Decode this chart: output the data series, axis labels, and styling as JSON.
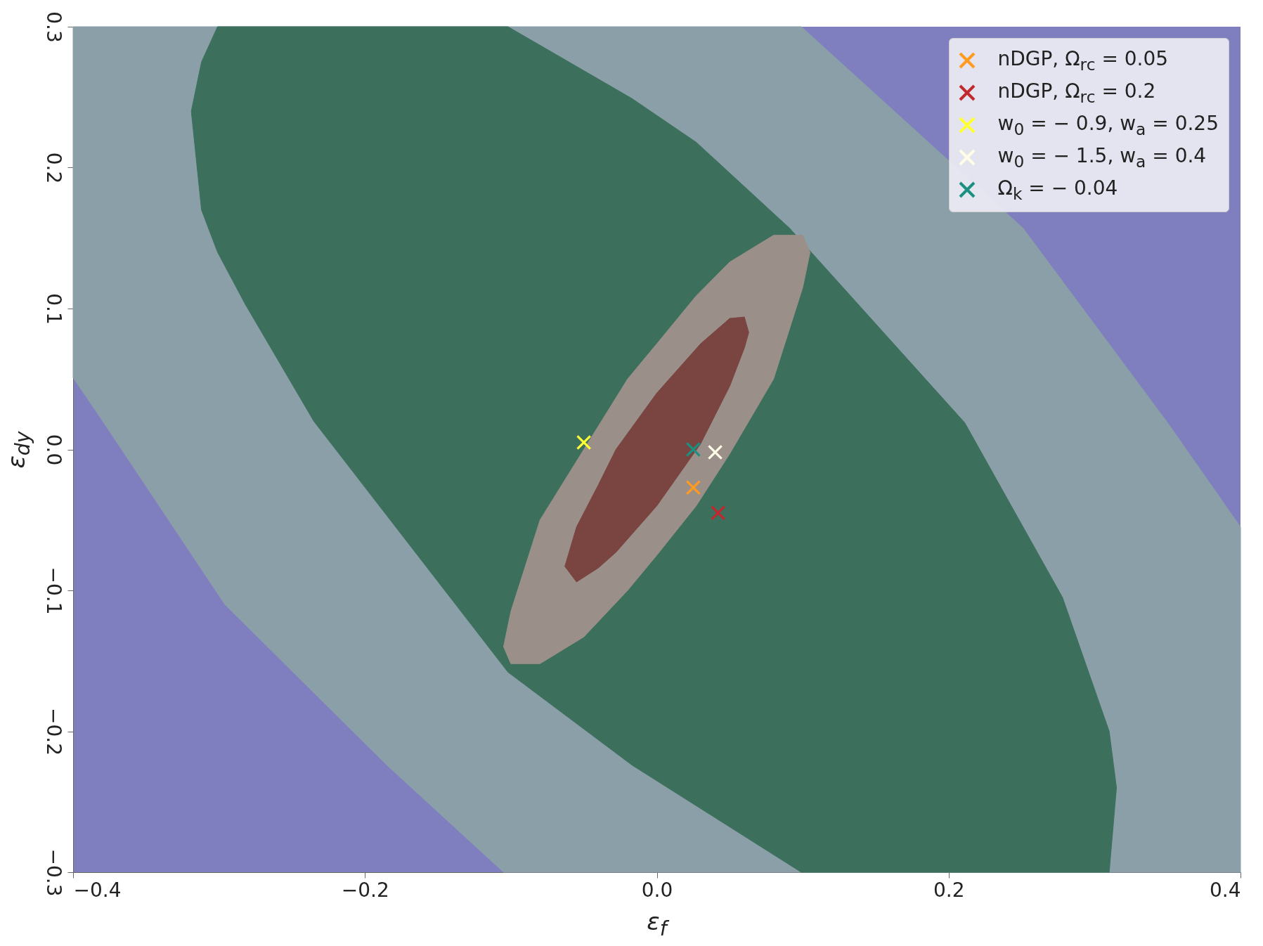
{
  "chart_data": {
    "type": "scatter",
    "xlabel": "ε$_{f}$",
    "ylabel": "ε$_{d}$$_{y}$",
    "xlim": [
      -0.4,
      0.4
    ],
    "ylim": [
      -0.3,
      0.3
    ],
    "xticks": [
      {
        "value": -0.4,
        "label": "−0.4"
      },
      {
        "value": -0.2,
        "label": "−0.2"
      },
      {
        "value": 0,
        "label": "0.0"
      },
      0.2,
      0.4
    ],
    "yticks": [
      {
        "value": -0.3,
        "label": "−0.3"
      },
      {
        "value": -0.2,
        "label": "−0.2"
      },
      {
        "value": -0.1,
        "label": "−0.1"
      },
      {
        "value": 0,
        "label": "0.0"
      },
      0.1,
      0.2,
      0.3
    ],
    "legend": "top right",
    "series": [
      {
        "type": "area",
        "color": "#8a9fa8",
        "x": [
          -0.4,
          0.099,
          0.251,
          0.35,
          0.4,
          0.4,
          -0.105,
          -0.185,
          -0.296,
          -0.379,
          -0.4,
          -0.4
        ],
        "values": [
          0.3,
          0.3,
          0.157,
          0.019,
          -0.055,
          -0.3,
          -0.3,
          -0.224,
          -0.11,
          0.019,
          0.051,
          0.3
        ]
      },
      {
        "type": "area",
        "color": "#3d705c",
        "x": [
          -0.319,
          -0.312,
          -0.301,
          -0.102,
          -0.017,
          0.027,
          0.091,
          0.211,
          0.278,
          0.31,
          0.315,
          0.31,
          0.099,
          -0.017,
          -0.102,
          -0.235,
          -0.282,
          -0.301,
          -0.312,
          -0.319
        ],
        "values": [
          0.24,
          0.275,
          0.3,
          0.3,
          0.249,
          0.218,
          0.157,
          0.019,
          -0.105,
          -0.2,
          -0.24,
          -0.3,
          -0.3,
          -0.224,
          -0.158,
          0.02,
          0.103,
          0.14,
          0.17,
          0.24
        ]
      },
      {
        "type": "area",
        "color": "#9b9089",
        "x": [
          -0.105,
          -0.1,
          -0.08,
          -0.02,
          0,
          0.027,
          0.05,
          0.08,
          0.1,
          0.105,
          0.1,
          0.08,
          0.05,
          0.027,
          0,
          -0.02,
          -0.05,
          -0.08,
          -0.1,
          -0.105
        ],
        "values": [
          -0.14,
          -0.115,
          -0.05,
          0.05,
          0.075,
          0.109,
          0.133,
          0.152,
          0.152,
          0.14,
          0.115,
          0.05,
          -0.003,
          -0.04,
          -0.075,
          -0.1,
          -0.133,
          -0.152,
          -0.152,
          -0.14
        ]
      },
      {
        "type": "area",
        "color": "#7a4540",
        "x": [
          -0.063,
          -0.055,
          -0.04,
          -0.028,
          0,
          0.03,
          0.05,
          0.06,
          0.063,
          0.06,
          0.05,
          0.03,
          0,
          -0.028,
          -0.04,
          -0.055,
          -0.063
        ],
        "values": [
          -0.083,
          -0.055,
          -0.025,
          0,
          0.04,
          0.075,
          0.093,
          0.094,
          0.083,
          0.072,
          0.045,
          0.004,
          -0.04,
          -0.073,
          -0.084,
          -0.094,
          -0.083
        ]
      },
      {
        "name": "nDGP, Ω$_{rc}$ = 0.05",
        "marker": "cross",
        "color": "#ff9a1e",
        "x": [
          0.025
        ],
        "values": [
          -0.027
        ]
      },
      {
        "name": "nDGP, Ω$_{rc}$ = 0.2",
        "marker": "cross",
        "color": "#c0282d",
        "x": [
          0.042
        ],
        "values": [
          -0.045
        ]
      },
      {
        "name": "w$_{0}$ = − 0.9, w$_{a}$ = 0.25",
        "marker": "cross",
        "color": "#ffff33",
        "x": [
          -0.05
        ],
        "values": [
          0.005
        ]
      },
      {
        "name": "w$_{0}$ = − 1.5, w$_{a}$ = 0.4",
        "marker": "cross",
        "color": "#fffde8",
        "x": [
          0.04
        ],
        "values": [
          -0.002
        ]
      },
      {
        "name": "Ω$_{k}$ = − 0.04",
        "marker": "cross",
        "color": "#1a9080",
        "x": [
          0.025
        ],
        "values": [
          0.0
        ]
      }
    ]
  }
}
